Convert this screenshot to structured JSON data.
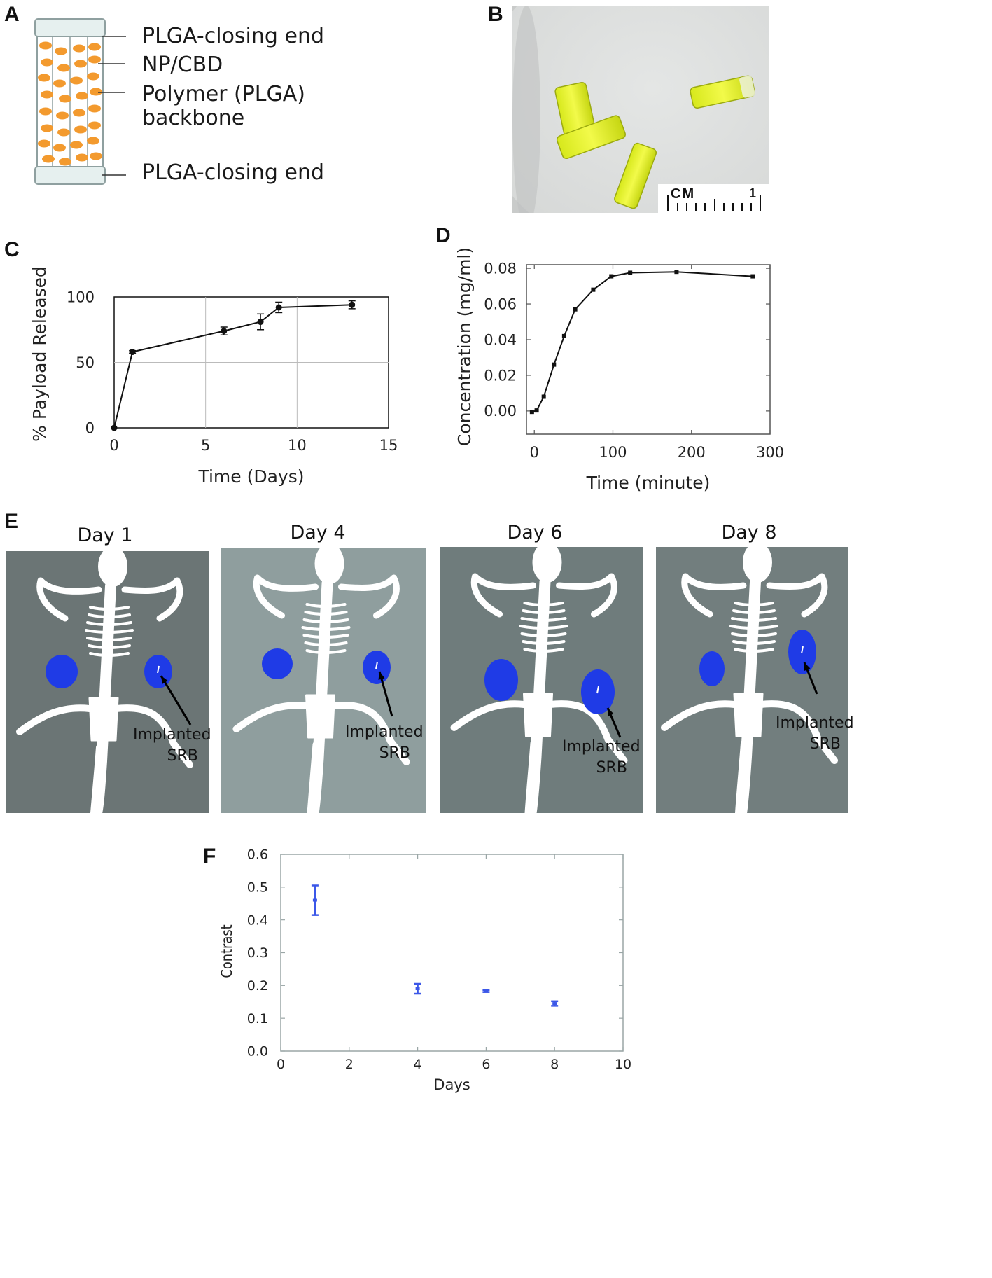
{
  "panels": {
    "a": "A",
    "b": "B",
    "c": "C",
    "d": "D",
    "e": "E",
    "f": "F"
  },
  "diagram": {
    "labels": [
      "PLGA-closing end",
      "NP/CBD",
      "Polymer (PLGA)",
      "backbone",
      "PLGA-closing end"
    ],
    "colors": {
      "particle": "#F39A2E",
      "cap": "#E6F0EF",
      "outline": "#8FA0A0"
    }
  },
  "photo": {
    "scale_text": "CM",
    "scale_number": "1"
  },
  "chart_data": [
    {
      "type": "line",
      "panel": "C",
      "xlabel": "Time (Days)",
      "ylabel": "% Payload Released",
      "xlim": [
        0,
        15
      ],
      "ylim": [
        0,
        100
      ],
      "xticks": [
        0,
        5,
        10,
        15
      ],
      "yticks": [
        0,
        50,
        100
      ],
      "grid": true,
      "x": [
        0,
        1,
        6,
        8,
        9,
        13
      ],
      "y": [
        0,
        58,
        74,
        81,
        92,
        94
      ],
      "err": [
        0,
        1,
        3,
        6,
        4,
        3
      ],
      "color": "#111111"
    },
    {
      "type": "line",
      "panel": "D",
      "xlabel": "Time (minute)",
      "ylabel": "Concentration (mg/ml)",
      "xlim": [
        -10,
        300
      ],
      "ylim": [
        -0.013,
        0.082
      ],
      "xticks": [
        0,
        100,
        200,
        300
      ],
      "yticks": [
        0.0,
        0.02,
        0.04,
        0.06,
        0.08
      ],
      "ytick_labels": [
        "0.00",
        "0.02",
        "0.04",
        "0.06",
        "0.08"
      ],
      "grid": false,
      "x": [
        -3,
        3,
        12,
        25,
        38,
        52,
        75,
        98,
        122,
        181,
        278
      ],
      "y": [
        -0.0005,
        0.0003,
        0.008,
        0.026,
        0.042,
        0.057,
        0.068,
        0.0755,
        0.0775,
        0.078,
        0.0755
      ],
      "color": "#111111"
    },
    {
      "type": "scatter",
      "panel": "F",
      "xlabel": "Days",
      "ylabel": "Contrast",
      "xlim": [
        0,
        10
      ],
      "ylim": [
        0,
        0.6
      ],
      "xticks": [
        0,
        2,
        4,
        6,
        8,
        10
      ],
      "yticks": [
        0.0,
        0.1,
        0.2,
        0.3,
        0.4,
        0.5,
        0.6
      ],
      "ytick_labels": [
        "0.0",
        "0.1",
        "0.2",
        "0.3",
        "0.4",
        "0.5",
        "0.6"
      ],
      "grid": false,
      "x": [
        1,
        4,
        6,
        8
      ],
      "y": [
        0.46,
        0.19,
        0.183,
        0.145
      ],
      "err": [
        0.045,
        0.015,
        0.003,
        0.007
      ],
      "color": "#3B57E8"
    }
  ],
  "imaging": {
    "days": [
      "Day 1",
      "Day 4",
      "Day 6",
      "Day 8"
    ],
    "annotation_line1": "Implanted",
    "annotation_line2": "SRB",
    "colors": {
      "background1": "#6B7575",
      "background2": "#8F9E9E",
      "background3": "#6F7C7C",
      "background4": "#727E7E",
      "implant": "#1F3BE6",
      "bone": "#ffffff"
    }
  }
}
